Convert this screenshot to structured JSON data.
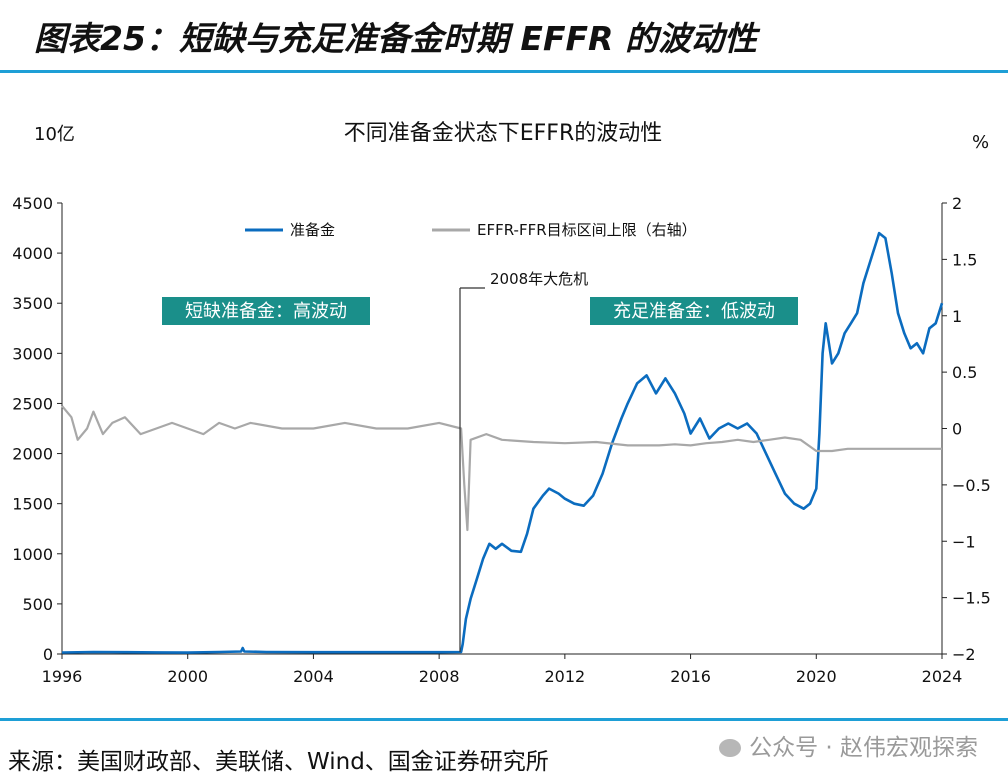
{
  "figure_title": "图表25：短缺与充足准备金时期 EFFR 的波动性",
  "source": "来源：美国财政部、美联储、Wind、国金证券研究所",
  "watermark": "公众号 · 赵伟宏观探索",
  "watermark_icon": "wechat-icon",
  "colors": {
    "accent_rule": "#1e9fd6",
    "series_blue": "#0b6cbf",
    "series_gray": "#a8a8a8",
    "label_box": "#1a8f8a"
  },
  "chart_data": {
    "type": "line",
    "title": "不同准备金状态下EFFR的波动性",
    "ylabel_left": "10亿",
    "ylabel_right": "%",
    "xlim": [
      1996,
      2024
    ],
    "ylim_left": [
      0,
      4500
    ],
    "ylim_right": [
      -2,
      2
    ],
    "x_ticks": [
      1996,
      2000,
      2004,
      2008,
      2012,
      2016,
      2020,
      2024
    ],
    "y_left_ticks": [
      0,
      500,
      1000,
      1500,
      2000,
      2500,
      3000,
      3500,
      4000,
      4500
    ],
    "y_right_ticks": [
      "−2",
      "−1.5",
      "−1",
      "−0.5",
      "0",
      "0.5",
      "1",
      "1.5",
      "2"
    ],
    "legend_position": "top",
    "grid": false,
    "annotations": [
      {
        "text": "2008年大危机",
        "x": 2008.7
      },
      {
        "text": "短缺准备金：高波动"
      },
      {
        "text": "充足准备金：低波动"
      }
    ],
    "series": [
      {
        "name": "准备金",
        "axis": "left",
        "color": "#0b6cbf",
        "x": [
          1996.0,
          1997.0,
          1998.0,
          1999.0,
          2000.0,
          2001.0,
          2001.7,
          2001.75,
          2001.8,
          2002.5,
          2004.0,
          2006.0,
          2008.0,
          2008.7,
          2008.75,
          2008.85,
          2009.0,
          2009.2,
          2009.4,
          2009.6,
          2009.8,
          2010.0,
          2010.3,
          2010.6,
          2010.8,
          2011.0,
          2011.3,
          2011.5,
          2011.8,
          2012.0,
          2012.3,
          2012.6,
          2012.9,
          2013.2,
          2013.5,
          2013.8,
          2014.0,
          2014.3,
          2014.6,
          2014.9,
          2015.2,
          2015.5,
          2015.8,
          2016.0,
          2016.3,
          2016.6,
          2016.9,
          2017.2,
          2017.5,
          2017.8,
          2018.1,
          2018.4,
          2018.7,
          2019.0,
          2019.3,
          2019.6,
          2019.8,
          2020.0,
          2020.1,
          2020.2,
          2020.3,
          2020.4,
          2020.5,
          2020.7,
          2020.9,
          2021.1,
          2021.3,
          2021.5,
          2021.7,
          2021.9,
          2022.0,
          2022.2,
          2022.4,
          2022.6,
          2022.8,
          2023.0,
          2023.2,
          2023.4,
          2023.6,
          2023.8,
          2024.0
        ],
        "y": [
          15,
          20,
          18,
          16,
          14,
          20,
          25,
          60,
          25,
          20,
          18,
          18,
          18,
          20,
          100,
          350,
          550,
          750,
          950,
          1100,
          1050,
          1100,
          1030,
          1020,
          1200,
          1450,
          1580,
          1650,
          1600,
          1550,
          1500,
          1480,
          1580,
          1800,
          2100,
          2350,
          2500,
          2700,
          2780,
          2600,
          2750,
          2600,
          2400,
          2200,
          2350,
          2150,
          2250,
          2300,
          2250,
          2300,
          2200,
          2000,
          1800,
          1600,
          1500,
          1450,
          1500,
          1650,
          2200,
          3000,
          3300,
          3100,
          2900,
          3000,
          3200,
          3300,
          3400,
          3700,
          3900,
          4100,
          4200,
          4150,
          3800,
          3400,
          3200,
          3050,
          3100,
          3000,
          3250,
          3300,
          3500
        ]
      },
      {
        "name": "EFFR-FFR目标区间上限（右轴）",
        "axis": "right",
        "color": "#a8a8a8",
        "x": [
          1996.0,
          1996.3,
          1996.5,
          1996.8,
          1997.0,
          1997.3,
          1997.6,
          1998.0,
          1998.5,
          1999.0,
          1999.5,
          2000.0,
          2000.5,
          2001.0,
          2001.5,
          2002.0,
          2003.0,
          2004.0,
          2005.0,
          2006.0,
          2007.0,
          2008.0,
          2008.7,
          2008.8,
          2008.9,
          2009.0,
          2009.5,
          2010.0,
          2011.0,
          2012.0,
          2013.0,
          2014.0,
          2015.0,
          2015.5,
          2016.0,
          2016.5,
          2017.0,
          2017.5,
          2018.0,
          2018.5,
          2019.0,
          2019.5,
          2020.0,
          2020.2,
          2020.5,
          2021.0,
          2022.0,
          2023.0,
          2024.0
        ],
        "y": [
          0.2,
          0.1,
          -0.1,
          0.0,
          0.15,
          -0.05,
          0.05,
          0.1,
          -0.05,
          0.0,
          0.05,
          0.0,
          -0.05,
          0.05,
          0.0,
          0.05,
          0.0,
          0.0,
          0.05,
          0.0,
          0.0,
          0.05,
          0.0,
          -0.5,
          -0.9,
          -0.1,
          -0.05,
          -0.1,
          -0.12,
          -0.13,
          -0.12,
          -0.15,
          -0.15,
          -0.14,
          -0.15,
          -0.13,
          -0.12,
          -0.1,
          -0.12,
          -0.1,
          -0.08,
          -0.1,
          -0.2,
          -0.2,
          -0.2,
          -0.18,
          -0.18,
          -0.18,
          -0.18
        ]
      }
    ]
  }
}
